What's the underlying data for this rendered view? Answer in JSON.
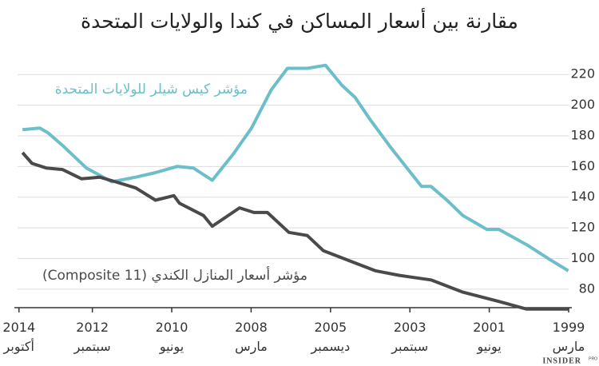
{
  "chart_data": {
    "type": "line",
    "title": "مقارنة بين أسعار المساكن في كندا والولايات المتحدة",
    "xlim": [
      2014.79,
      1999.17
    ],
    "ylim": [
      70,
      230
    ],
    "yticks": [
      80,
      100,
      120,
      140,
      160,
      180,
      200,
      220
    ],
    "xticks": [
      {
        "value": 2014.75,
        "label": "2014\nأكتوبر"
      },
      {
        "value": 2012.67,
        "label": "2012\nسبتمبر"
      },
      {
        "value": 2010.42,
        "label": "2010\nيونيو"
      },
      {
        "value": 2008.17,
        "label": "2008\nمارس"
      },
      {
        "value": 2005.92,
        "label": "2005\nديسمبر"
      },
      {
        "value": 2003.67,
        "label": "2003\nسبتمبر"
      },
      {
        "value": 2001.42,
        "label": "2001\nيونيو"
      },
      {
        "value": 1999.17,
        "label": "1999\nمارس"
      }
    ],
    "grid": true,
    "series": [
      {
        "name": "مؤشر كيس شيلر للولايات المتحدة",
        "color": "#6cbec8",
        "x": [
          2014.65,
          2014.16,
          2013.93,
          2013.48,
          2012.84,
          2012.12,
          2011.44,
          2010.88,
          2010.27,
          2009.81,
          2009.27,
          2008.68,
          2008.16,
          2007.6,
          2007.14,
          2006.58,
          2006.06,
          2005.6,
          2005.22,
          2004.84,
          2004.2,
          2003.34,
          2003.07,
          2002.62,
          2002.17,
          2001.49,
          2001.15,
          2000.36,
          1999.68,
          1999.18
        ],
        "values": [
          184,
          185,
          182,
          173,
          159,
          150,
          153,
          156,
          160,
          159,
          151,
          168,
          185,
          210,
          224,
          224,
          226,
          213,
          205,
          192,
          172,
          147,
          147,
          138,
          128,
          119,
          119,
          109,
          99,
          92
        ]
      },
      {
        "name": "مؤشر أسعار المنازل الكندي (Composite 11)",
        "color": "#4a4a4a",
        "x": [
          2014.65,
          2014.38,
          2013.98,
          2013.52,
          2012.98,
          2012.46,
          2012.01,
          2011.44,
          2010.88,
          2010.36,
          2010.2,
          2009.52,
          2009.27,
          2008.5,
          2008.09,
          2007.71,
          2007.1,
          2006.58,
          2006.12,
          2005.33,
          2004.65,
          2003.98,
          2003.07,
          2002.17,
          2001.15,
          2000.36,
          1999.18
        ],
        "values": [
          169,
          162,
          159,
          158,
          152,
          153,
          150,
          146,
          138,
          141,
          136,
          128,
          121,
          133,
          130,
          130,
          117,
          115,
          105,
          98,
          92,
          89,
          86,
          78,
          72,
          67,
          67
        ]
      }
    ],
    "logo": "INSIDER",
    "logo_tag": "PRO"
  }
}
